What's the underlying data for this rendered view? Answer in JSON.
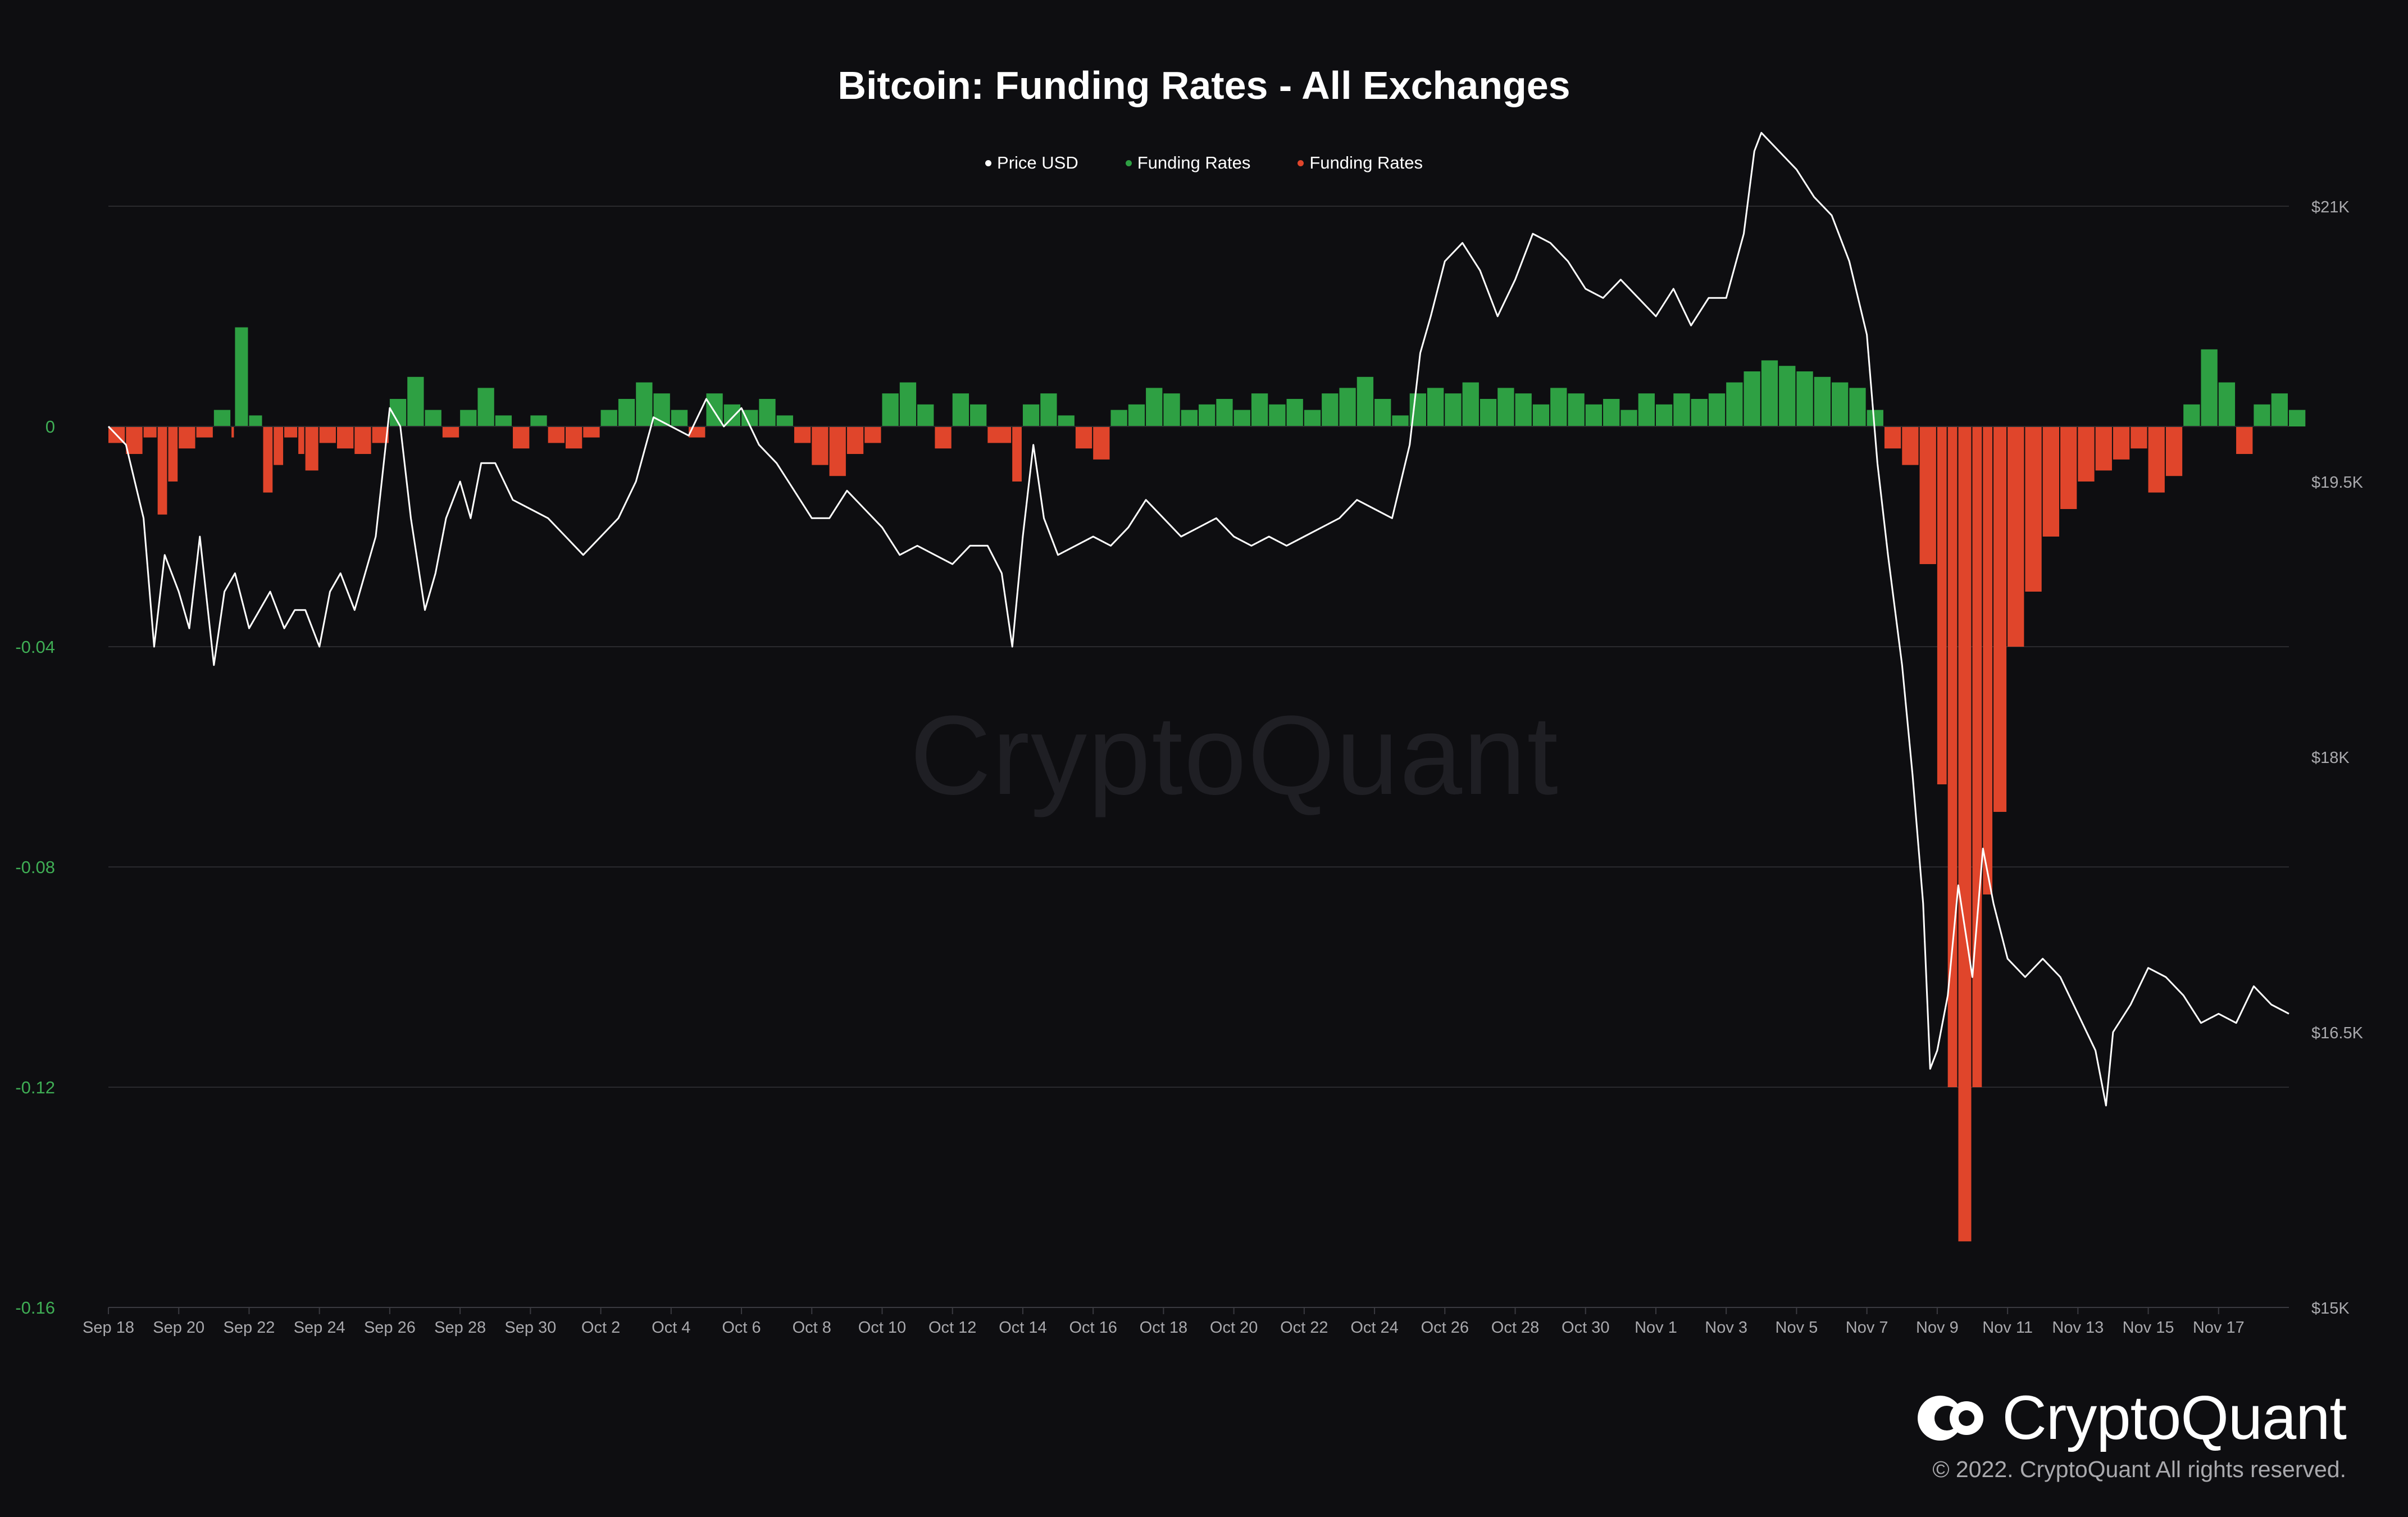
{
  "chart_data": {
    "type": "line+bar",
    "title": "Bitcoin: Funding Rates - All Exchanges",
    "legend": [
      {
        "name": "Price USD",
        "color": "#ffffff"
      },
      {
        "name": "Funding Rates",
        "color": "#2ea043"
      },
      {
        "name": "Funding Rates",
        "color": "#e0452b"
      }
    ],
    "x_ticks": [
      "Sep 18",
      "Sep 20",
      "Sep 22",
      "Sep 24",
      "Sep 26",
      "Sep 28",
      "Sep 30",
      "Oct 2",
      "Oct 4",
      "Oct 6",
      "Oct 8",
      "Oct 10",
      "Oct 12",
      "Oct 14",
      "Oct 16",
      "Oct 18",
      "Oct 20",
      "Oct 22",
      "Oct 24",
      "Oct 26",
      "Oct 28",
      "Oct 30",
      "Nov 1",
      "Nov 3",
      "Nov 5",
      "Nov 7",
      "Nov 9",
      "Nov 11",
      "Nov 13",
      "Nov 15",
      "Nov 17"
    ],
    "x_range_days": [
      0,
      62
    ],
    "y_left": {
      "ticks": [
        "0",
        "-0.04",
        "-0.08",
        "-0.12",
        "-0.16"
      ],
      "min": -0.16,
      "max": 0.04
    },
    "y_right": {
      "ticks": [
        "$21K",
        "$19.5K",
        "$18K",
        "$16.5K",
        "$15K"
      ],
      "min": 15000,
      "max": 21000
    },
    "price_usd": [
      [
        0,
        19800
      ],
      [
        0.5,
        19700
      ],
      [
        1,
        19300
      ],
      [
        1.3,
        18600
      ],
      [
        1.6,
        19100
      ],
      [
        2,
        18900
      ],
      [
        2.3,
        18700
      ],
      [
        2.6,
        19200
      ],
      [
        3,
        18500
      ],
      [
        3.3,
        18900
      ],
      [
        3.6,
        19000
      ],
      [
        4,
        18700
      ],
      [
        4.3,
        18800
      ],
      [
        4.6,
        18900
      ],
      [
        5,
        18700
      ],
      [
        5.3,
        18800
      ],
      [
        5.6,
        18800
      ],
      [
        6,
        18600
      ],
      [
        6.3,
        18900
      ],
      [
        6.6,
        19000
      ],
      [
        7,
        18800
      ],
      [
        7.3,
        19000
      ],
      [
        7.6,
        19200
      ],
      [
        8,
        19900
      ],
      [
        8.3,
        19800
      ],
      [
        8.6,
        19300
      ],
      [
        9,
        18800
      ],
      [
        9.3,
        19000
      ],
      [
        9.6,
        19300
      ],
      [
        10,
        19500
      ],
      [
        10.3,
        19300
      ],
      [
        10.6,
        19600
      ],
      [
        11,
        19600
      ],
      [
        11.5,
        19400
      ],
      [
        12,
        19350
      ],
      [
        12.5,
        19300
      ],
      [
        13,
        19200
      ],
      [
        13.5,
        19100
      ],
      [
        14,
        19200
      ],
      [
        14.5,
        19300
      ],
      [
        15,
        19500
      ],
      [
        15.5,
        19850
      ],
      [
        16,
        19800
      ],
      [
        16.5,
        19750
      ],
      [
        17,
        19950
      ],
      [
        17.5,
        19800
      ],
      [
        18,
        19900
      ],
      [
        18.5,
        19700
      ],
      [
        19,
        19600
      ],
      [
        19.5,
        19450
      ],
      [
        20,
        19300
      ],
      [
        20.5,
        19300
      ],
      [
        21,
        19450
      ],
      [
        21.5,
        19350
      ],
      [
        22,
        19250
      ],
      [
        22.5,
        19100
      ],
      [
        23,
        19150
      ],
      [
        23.5,
        19100
      ],
      [
        24,
        19050
      ],
      [
        24.5,
        19150
      ],
      [
        25,
        19150
      ],
      [
        25.4,
        19000
      ],
      [
        25.7,
        18600
      ],
      [
        26,
        19200
      ],
      [
        26.3,
        19700
      ],
      [
        26.6,
        19300
      ],
      [
        27,
        19100
      ],
      [
        27.5,
        19150
      ],
      [
        28,
        19200
      ],
      [
        28.5,
        19150
      ],
      [
        29,
        19250
      ],
      [
        29.5,
        19400
      ],
      [
        30,
        19300
      ],
      [
        30.5,
        19200
      ],
      [
        31,
        19250
      ],
      [
        31.5,
        19300
      ],
      [
        32,
        19200
      ],
      [
        32.5,
        19150
      ],
      [
        33,
        19200
      ],
      [
        33.5,
        19150
      ],
      [
        34,
        19200
      ],
      [
        34.5,
        19250
      ],
      [
        35,
        19300
      ],
      [
        35.5,
        19400
      ],
      [
        36,
        19350
      ],
      [
        36.5,
        19300
      ],
      [
        37,
        19700
      ],
      [
        37.3,
        20200
      ],
      [
        37.6,
        20400
      ],
      [
        38,
        20700
      ],
      [
        38.5,
        20800
      ],
      [
        39,
        20650
      ],
      [
        39.5,
        20400
      ],
      [
        40,
        20600
      ],
      [
        40.5,
        20850
      ],
      [
        41,
        20800
      ],
      [
        41.5,
        20700
      ],
      [
        42,
        20550
      ],
      [
        42.5,
        20500
      ],
      [
        43,
        20600
      ],
      [
        43.5,
        20500
      ],
      [
        44,
        20400
      ],
      [
        44.5,
        20550
      ],
      [
        45,
        20350
      ],
      [
        45.5,
        20500
      ],
      [
        46,
        20500
      ],
      [
        46.5,
        20850
      ],
      [
        46.8,
        21300
      ],
      [
        47,
        21400
      ],
      [
        47.5,
        21300
      ],
      [
        48,
        21200
      ],
      [
        48.5,
        21050
      ],
      [
        49,
        20950
      ],
      [
        49.5,
        20700
      ],
      [
        50,
        20300
      ],
      [
        50.3,
        19600
      ],
      [
        50.6,
        19100
      ],
      [
        51,
        18500
      ],
      [
        51.3,
        17900
      ],
      [
        51.6,
        17200
      ],
      [
        51.8,
        16300
      ],
      [
        52,
        16400
      ],
      [
        52.3,
        16700
      ],
      [
        52.6,
        17300
      ],
      [
        53,
        16800
      ],
      [
        53.3,
        17500
      ],
      [
        53.6,
        17200
      ],
      [
        54,
        16900
      ],
      [
        54.5,
        16800
      ],
      [
        55,
        16900
      ],
      [
        55.5,
        16800
      ],
      [
        56,
        16600
      ],
      [
        56.5,
        16400
      ],
      [
        56.8,
        16100
      ],
      [
        57,
        16500
      ],
      [
        57.5,
        16650
      ],
      [
        58,
        16850
      ],
      [
        58.5,
        16800
      ],
      [
        59,
        16700
      ],
      [
        59.5,
        16550
      ],
      [
        60,
        16600
      ],
      [
        60.5,
        16550
      ],
      [
        61,
        16750
      ],
      [
        61.5,
        16650
      ],
      [
        62,
        16600
      ]
    ],
    "funding_rates": [
      [
        0,
        -0.003
      ],
      [
        0.5,
        -0.005
      ],
      [
        1,
        -0.002
      ],
      [
        1.4,
        -0.016
      ],
      [
        1.7,
        -0.01
      ],
      [
        2,
        -0.004
      ],
      [
        2.5,
        -0.002
      ],
      [
        3,
        0.003
      ],
      [
        3.5,
        -0.002
      ],
      [
        3.6,
        0.018
      ],
      [
        4,
        0.002
      ],
      [
        4.4,
        -0.012
      ],
      [
        4.7,
        -0.007
      ],
      [
        5,
        -0.002
      ],
      [
        5.4,
        -0.005
      ],
      [
        5.6,
        -0.008
      ],
      [
        6,
        -0.003
      ],
      [
        6.5,
        -0.004
      ],
      [
        7,
        -0.005
      ],
      [
        7.5,
        -0.003
      ],
      [
        8,
        0.005
      ],
      [
        8.5,
        0.009
      ],
      [
        9,
        0.003
      ],
      [
        9.5,
        -0.002
      ],
      [
        10,
        0.003
      ],
      [
        10.5,
        0.007
      ],
      [
        11,
        0.002
      ],
      [
        11.5,
        -0.004
      ],
      [
        12,
        0.002
      ],
      [
        12.5,
        -0.003
      ],
      [
        13,
        -0.004
      ],
      [
        13.5,
        -0.002
      ],
      [
        14,
        0.003
      ],
      [
        14.5,
        0.005
      ],
      [
        15,
        0.008
      ],
      [
        15.5,
        0.006
      ],
      [
        16,
        0.003
      ],
      [
        16.5,
        -0.002
      ],
      [
        17,
        0.006
      ],
      [
        17.5,
        0.004
      ],
      [
        18,
        0.003
      ],
      [
        18.5,
        0.005
      ],
      [
        19,
        0.002
      ],
      [
        19.5,
        -0.003
      ],
      [
        20,
        -0.007
      ],
      [
        20.5,
        -0.009
      ],
      [
        21,
        -0.005
      ],
      [
        21.5,
        -0.003
      ],
      [
        22,
        0.006
      ],
      [
        22.5,
        0.008
      ],
      [
        23,
        0.004
      ],
      [
        23.5,
        -0.004
      ],
      [
        24,
        0.006
      ],
      [
        24.5,
        0.004
      ],
      [
        25,
        -0.003
      ],
      [
        25.7,
        -0.01
      ],
      [
        26,
        0.004
      ],
      [
        26.5,
        0.006
      ],
      [
        27,
        0.002
      ],
      [
        27.5,
        -0.004
      ],
      [
        28,
        -0.006
      ],
      [
        28.5,
        0.003
      ],
      [
        29,
        0.004
      ],
      [
        29.5,
        0.007
      ],
      [
        30,
        0.006
      ],
      [
        30.5,
        0.003
      ],
      [
        31,
        0.004
      ],
      [
        31.5,
        0.005
      ],
      [
        32,
        0.003
      ],
      [
        32.5,
        0.006
      ],
      [
        33,
        0.004
      ],
      [
        33.5,
        0.005
      ],
      [
        34,
        0.003
      ],
      [
        34.5,
        0.006
      ],
      [
        35,
        0.007
      ],
      [
        35.5,
        0.009
      ],
      [
        36,
        0.005
      ],
      [
        36.5,
        0.002
      ],
      [
        37,
        0.006
      ],
      [
        37.5,
        0.007
      ],
      [
        38,
        0.006
      ],
      [
        38.5,
        0.008
      ],
      [
        39,
        0.005
      ],
      [
        39.5,
        0.007
      ],
      [
        40,
        0.006
      ],
      [
        40.5,
        0.004
      ],
      [
        41,
        0.007
      ],
      [
        41.5,
        0.006
      ],
      [
        42,
        0.004
      ],
      [
        42.5,
        0.005
      ],
      [
        43,
        0.003
      ],
      [
        43.5,
        0.006
      ],
      [
        44,
        0.004
      ],
      [
        44.5,
        0.006
      ],
      [
        45,
        0.005
      ],
      [
        45.5,
        0.006
      ],
      [
        46,
        0.008
      ],
      [
        46.5,
        0.01
      ],
      [
        47,
        0.012
      ],
      [
        47.5,
        0.011
      ],
      [
        48,
        0.01
      ],
      [
        48.5,
        0.009
      ],
      [
        49,
        0.008
      ],
      [
        49.5,
        0.007
      ],
      [
        50,
        0.003
      ],
      [
        50.5,
        -0.004
      ],
      [
        51,
        -0.007
      ],
      [
        51.5,
        -0.025
      ],
      [
        52,
        -0.065
      ],
      [
        52.3,
        -0.12
      ],
      [
        52.6,
        -0.148
      ],
      [
        53,
        -0.12
      ],
      [
        53.3,
        -0.085
      ],
      [
        53.6,
        -0.07
      ],
      [
        54,
        -0.04
      ],
      [
        54.5,
        -0.03
      ],
      [
        55,
        -0.02
      ],
      [
        55.5,
        -0.015
      ],
      [
        56,
        -0.01
      ],
      [
        56.5,
        -0.008
      ],
      [
        57,
        -0.006
      ],
      [
        57.5,
        -0.004
      ],
      [
        58,
        -0.012
      ],
      [
        58.5,
        -0.009
      ],
      [
        59,
        0.004
      ],
      [
        59.5,
        0.014
      ],
      [
        60,
        0.008
      ],
      [
        60.5,
        -0.005
      ],
      [
        61,
        0.004
      ],
      [
        61.5,
        0.006
      ],
      [
        62,
        0.003
      ]
    ]
  },
  "watermark": "CryptoQuant",
  "brand": {
    "name": "CryptoQuant",
    "copyright": "© 2022. CryptoQuant All rights reserved."
  }
}
